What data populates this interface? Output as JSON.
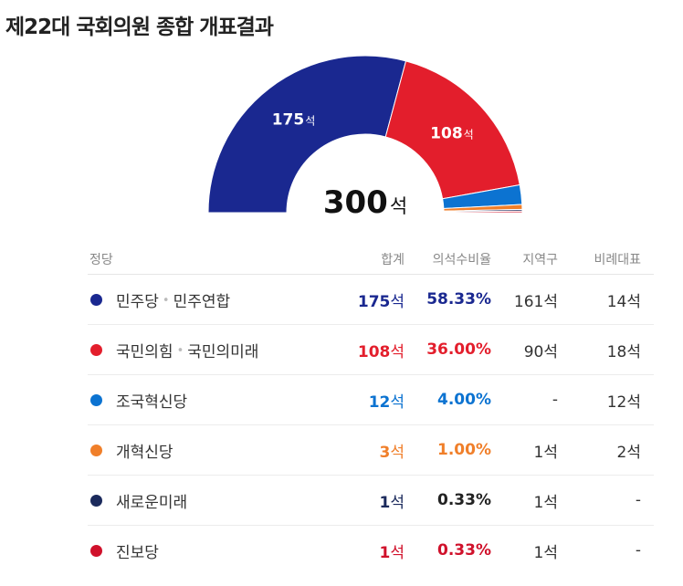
{
  "title": "제22대 국회의원 종합 개표결과",
  "chart_data": {
    "type": "pie",
    "shape": "half-donut",
    "total": 300,
    "total_unit": "석",
    "segments": [
      {
        "party": "민주당·민주연합",
        "seats": 175,
        "color": "#1a2890",
        "label": "175",
        "unit": "석"
      },
      {
        "party": "국민의힘·국민의미래",
        "seats": 108,
        "color": "#e31e2c",
        "label": "108",
        "unit": "석"
      },
      {
        "party": "조국혁신당",
        "seats": 12,
        "color": "#0c73d1",
        "label": "",
        "unit": ""
      },
      {
        "party": "개혁신당",
        "seats": 3,
        "color": "#f07f2a",
        "label": "",
        "unit": ""
      },
      {
        "party": "새로운미래",
        "seats": 1,
        "color": "#1b2a5c",
        "label": "",
        "unit": ""
      },
      {
        "party": "진보당",
        "seats": 1,
        "color": "#d0112b",
        "label": "",
        "unit": ""
      }
    ]
  },
  "table": {
    "headers": {
      "party": "정당",
      "total": "합계",
      "ratio": "의석수비율",
      "district": "지역구",
      "proportional": "비례대표"
    },
    "rows": [
      {
        "name_a": "민주당",
        "sep": "•",
        "name_b": "민주연합",
        "color": "#1a2890",
        "total": "175",
        "total_unit": "석",
        "ratio": "58.33%",
        "district": "161석",
        "proportional": "14석",
        "accent": true
      },
      {
        "name_a": "국민의힘",
        "sep": "•",
        "name_b": "국민의미래",
        "color": "#e31e2c",
        "total": "108",
        "total_unit": "석",
        "ratio": "36.00%",
        "district": "90석",
        "proportional": "18석",
        "accent": true
      },
      {
        "name_a": "조국혁신당",
        "sep": "",
        "name_b": "",
        "color": "#0c73d1",
        "total": "12",
        "total_unit": "석",
        "ratio": "4.00%",
        "district": "-",
        "proportional": "12석",
        "accent": true
      },
      {
        "name_a": "개혁신당",
        "sep": "",
        "name_b": "",
        "color": "#f07f2a",
        "total": "3",
        "total_unit": "석",
        "ratio": "1.00%",
        "district": "1석",
        "proportional": "2석",
        "accent": true
      },
      {
        "name_a": "새로운미래",
        "sep": "",
        "name_b": "",
        "color": "#1b2a5c",
        "total": "1",
        "total_unit": "석",
        "ratio": "0.33%",
        "district": "1석",
        "proportional": "-",
        "accent": false
      },
      {
        "name_a": "진보당",
        "sep": "",
        "name_b": "",
        "color": "#d0112b",
        "total": "1",
        "total_unit": "석",
        "ratio": "0.33%",
        "district": "1석",
        "proportional": "-",
        "accent": true
      }
    ]
  }
}
